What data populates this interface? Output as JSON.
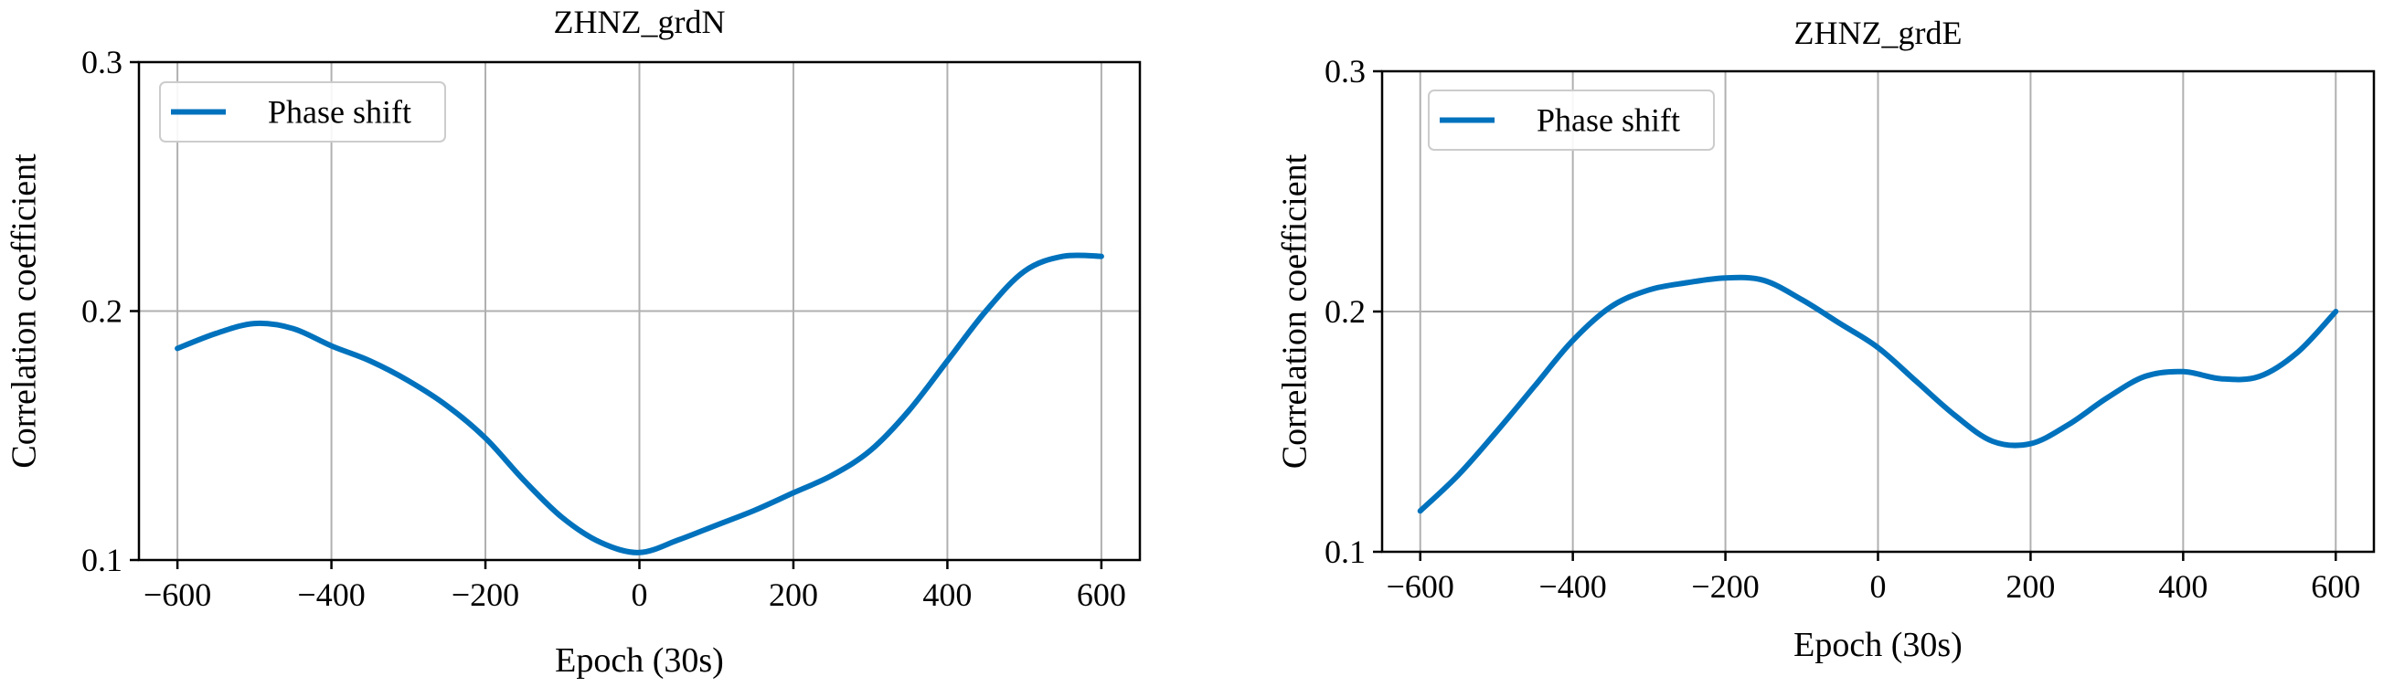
{
  "chart_data": [
    {
      "type": "line",
      "title": "ZHNZ_grdN",
      "xlabel": "Epoch (30s)",
      "ylabel": "Correlation coefficient",
      "xlim": [
        -650,
        650
      ],
      "ylim": [
        0.1,
        0.3
      ],
      "xticks": [
        -600,
        -400,
        -200,
        0,
        200,
        400,
        600
      ],
      "xtick_labels": [
        "−600",
        "−400",
        "−200",
        "0",
        "200",
        "400",
        "600"
      ],
      "yticks": [
        0.1,
        0.2,
        0.3
      ],
      "ytick_labels": [
        "0.1",
        "0.2",
        "0.3"
      ],
      "grid": true,
      "legend": "upper-left",
      "series": [
        {
          "name": "Phase shift",
          "color": "#0072BD",
          "x": [
            -600,
            -550,
            -500,
            -450,
            -400,
            -350,
            -300,
            -250,
            -200,
            -150,
            -100,
            -50,
            0,
            50,
            100,
            150,
            200,
            250,
            300,
            350,
            400,
            450,
            500,
            550,
            600
          ],
          "y": [
            0.185,
            0.191,
            0.195,
            0.193,
            0.186,
            0.18,
            0.172,
            0.162,
            0.149,
            0.132,
            0.117,
            0.107,
            0.103,
            0.108,
            0.114,
            0.12,
            0.127,
            0.134,
            0.144,
            0.16,
            0.18,
            0.2,
            0.216,
            0.222,
            0.222
          ]
        }
      ]
    },
    {
      "type": "line",
      "title": "ZHNZ_grdE",
      "xlabel": "Epoch (30s)",
      "ylabel": "Correlation coefficient",
      "xlim": [
        -650,
        650
      ],
      "ylim": [
        0.1,
        0.3
      ],
      "xticks": [
        -600,
        -400,
        -200,
        0,
        200,
        400,
        600
      ],
      "xtick_labels": [
        "−600",
        "−400",
        "−200",
        "0",
        "200",
        "400",
        "600"
      ],
      "yticks": [
        0.1,
        0.2,
        0.3
      ],
      "ytick_labels": [
        "0.1",
        "0.2",
        "0.3"
      ],
      "grid": true,
      "legend": "upper-left",
      "series": [
        {
          "name": "Phase shift",
          "color": "#0072BD",
          "x": [
            -600,
            -550,
            -500,
            -450,
            -400,
            -350,
            -300,
            -250,
            -200,
            -150,
            -100,
            -50,
            0,
            50,
            100,
            150,
            200,
            250,
            300,
            350,
            400,
            450,
            500,
            550,
            600
          ],
          "y": [
            0.117,
            0.132,
            0.15,
            0.169,
            0.188,
            0.202,
            0.209,
            0.212,
            0.214,
            0.213,
            0.205,
            0.195,
            0.185,
            0.171,
            0.157,
            0.146,
            0.145,
            0.153,
            0.164,
            0.173,
            0.175,
            0.172,
            0.173,
            0.183,
            0.2
          ]
        }
      ]
    }
  ]
}
